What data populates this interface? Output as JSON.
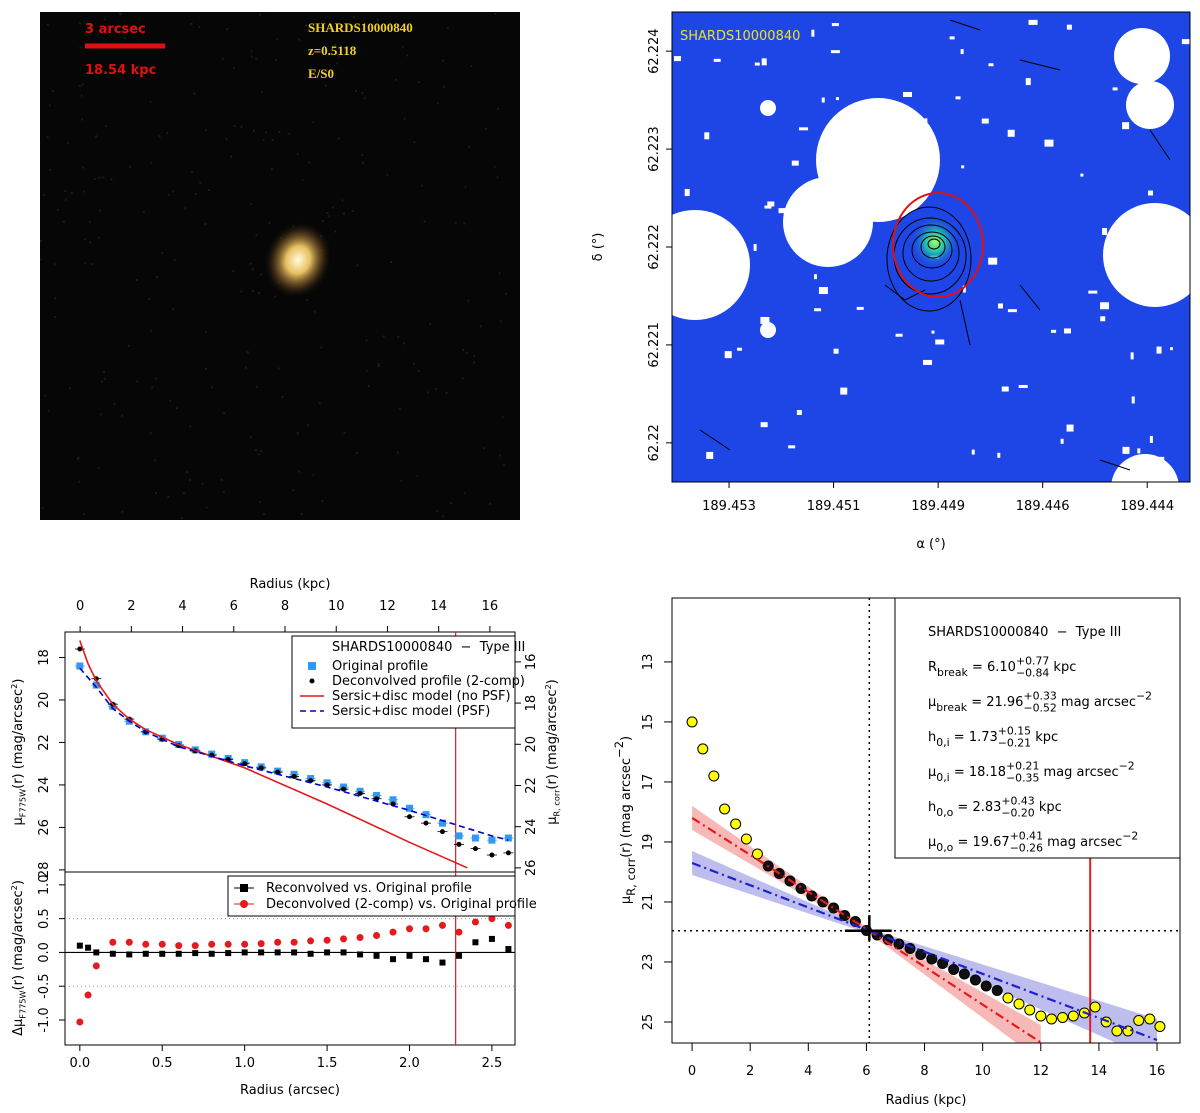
{
  "chart_data": [
    {
      "type": "image",
      "scale_labels": [
        "3 arcsec",
        "18.54 kpc"
      ],
      "text": [
        "SHARDS10000840",
        "z=0.5118",
        "E/S0"
      ]
    },
    {
      "type": "map",
      "title": "SHARDS10000840",
      "xlabel": "α (°)",
      "ylabel": "δ (°)",
      "xlim": [
        189.4542,
        189.4433
      ],
      "ylim": [
        62.2196,
        62.2244
      ],
      "xticks": [
        189.453,
        {
          "value": 189.4508,
          "label": "189.451"
        },
        {
          "value": 189.4486,
          "label": "189.449"
        },
        {
          "value": 189.4464,
          "label": "189.446"
        },
        {
          "value": 189.4442,
          "label": "189.444"
        }
      ],
      "yticks": [
        62.224,
        62.223,
        62.222,
        62.221,
        62.22
      ]
    },
    {
      "type": "profile",
      "x2label": "Radius (kpc)",
      "ylabel": [
        {
          "t": "μ"
        },
        {
          "sub": "F775W"
        },
        {
          "t": "(r) (mag/arcsec"
        },
        {
          "sup": "2"
        },
        {
          "t": ")"
        }
      ],
      "y2label": [
        {
          "t": "μ"
        },
        {
          "sub": "R, corr"
        },
        {
          "t": "(r) (mag/arcsec"
        },
        {
          "sup": "2"
        },
        {
          "t": ")"
        }
      ],
      "xlim": [
        -0.09,
        2.64
      ],
      "x2lim": [
        -0.59,
        16.98
      ],
      "x2ticks": [
        0,
        2,
        4,
        6,
        8,
        10,
        12,
        14,
        16
      ],
      "ylim": [
        28.1,
        16.8
      ],
      "yticks": [
        18,
        20,
        22,
        24,
        26,
        28
      ],
      "y2lim": [
        26.2,
        14.55
      ],
      "y2ticks": [
        16,
        18,
        20,
        22,
        24,
        26
      ],
      "legend_title": "SHARDS10000840  −  Type III",
      "legend": "top-right",
      "limit_x": 2.28,
      "series": [
        {
          "name": "Original profile",
          "color": "#3399ee",
          "marker": "square",
          "x": [
            0,
            0.1,
            0.2,
            0.3,
            0.4,
            0.5,
            0.6,
            0.7,
            0.8,
            0.9,
            1.0,
            1.1,
            1.2,
            1.3,
            1.4,
            1.5,
            1.6,
            1.7,
            1.8,
            1.9,
            2.0,
            2.1,
            2.2,
            2.3,
            2.4,
            2.5,
            2.6
          ],
          "values": [
            18.4,
            19.3,
            20.3,
            21.0,
            21.5,
            21.8,
            22.1,
            22.35,
            22.55,
            22.75,
            22.95,
            23.15,
            23.35,
            23.5,
            23.7,
            23.9,
            24.1,
            24.3,
            24.5,
            24.7,
            25.1,
            25.4,
            25.8,
            26.4,
            26.5,
            26.6,
            26.5
          ]
        },
        {
          "name": "Deconvolved profile (2-comp)",
          "color": "#000000",
          "marker": "dot",
          "x": [
            0,
            0.1,
            0.2,
            0.3,
            0.4,
            0.5,
            0.6,
            0.7,
            0.8,
            0.9,
            1.0,
            1.1,
            1.2,
            1.3,
            1.4,
            1.5,
            1.6,
            1.7,
            1.8,
            1.9,
            2.0,
            2.1,
            2.2,
            2.3,
            2.4,
            2.5,
            2.6
          ],
          "values": [
            17.6,
            19.0,
            20.2,
            20.9,
            21.5,
            21.85,
            22.15,
            22.4,
            22.6,
            22.8,
            23.0,
            23.2,
            23.4,
            23.6,
            23.8,
            24.0,
            24.2,
            24.4,
            24.65,
            24.9,
            25.5,
            25.8,
            26.2,
            26.8,
            27.0,
            27.3,
            27.2
          ]
        },
        {
          "name": "Sersic+disc model (no PSF)",
          "color": "#e41a1c",
          "line": "solid",
          "x": [
            0,
            0.05,
            0.1,
            0.2,
            0.3,
            0.4,
            0.6,
            1.0,
            1.5,
            2.0,
            2.35
          ],
          "values": [
            17.2,
            18.3,
            19.1,
            20.2,
            20.9,
            21.4,
            22.1,
            23.2,
            24.9,
            26.7,
            27.9
          ]
        },
        {
          "name": "Sersic+disc model (PSF)",
          "color": "#0000cc",
          "line": "dashed",
          "x": [
            0,
            0.1,
            0.2,
            0.3,
            0.4,
            0.6,
            1.0,
            1.5,
            2.0,
            2.5,
            2.6
          ],
          "values": [
            18.5,
            19.4,
            20.4,
            21.0,
            21.5,
            22.2,
            23.1,
            24.1,
            25.2,
            26.4,
            26.6
          ]
        }
      ]
    },
    {
      "type": "residual",
      "xlabel": "Radius (arcsec)",
      "ylabel": [
        {
          "t": "Δμ"
        },
        {
          "sub": "F775W"
        },
        {
          "t": "(r) (mag/arcsec"
        },
        {
          "sup": "2"
        },
        {
          "t": ")"
        }
      ],
      "xlim": [
        -0.09,
        2.64
      ],
      "xticks": [
        {
          "value": 0,
          "label": "0.0"
        },
        0.5,
        {
          "value": 1,
          "label": "1.0"
        },
        1.5,
        {
          "value": 2,
          "label": "2.0"
        },
        2.5
      ],
      "ylim": [
        -1.37,
        1.19
      ],
      "yticks": [
        {
          "value": 1,
          "label": "1.0"
        },
        0.5,
        {
          "value": 0,
          "label": "0.0"
        },
        -0.5,
        {
          "value": -1,
          "label": "-1.0"
        }
      ],
      "guides": [
        0.5,
        -0.5
      ],
      "limit_x": 2.28,
      "legend": "top-right",
      "series": [
        {
          "name": "Reconvolved vs. Original profile",
          "color": "#000000",
          "marker": "square",
          "x": [
            0,
            0.05,
            0.1,
            0.2,
            0.3,
            0.4,
            0.5,
            0.6,
            0.7,
            0.8,
            0.9,
            1.0,
            1.1,
            1.2,
            1.3,
            1.4,
            1.5,
            1.6,
            1.7,
            1.8,
            1.9,
            2.0,
            2.1,
            2.2,
            2.3,
            2.4,
            2.5,
            2.6
          ],
          "values": [
            0.1,
            0.07,
            0.0,
            -0.02,
            -0.03,
            -0.02,
            -0.02,
            -0.02,
            -0.01,
            -0.02,
            -0.01,
            0,
            0,
            0,
            0,
            -0.02,
            0,
            0,
            -0.03,
            -0.05,
            -0.1,
            -0.05,
            -0.1,
            -0.15,
            -0.05,
            0.15,
            0.2,
            0.05
          ]
        },
        {
          "name": "Deconvolved (2-comp) vs. Original profile",
          "color": "#e41a1c",
          "marker": "dot",
          "x": [
            0,
            0.05,
            0.1,
            0.2,
            0.3,
            0.4,
            0.5,
            0.6,
            0.7,
            0.8,
            0.9,
            1.0,
            1.1,
            1.2,
            1.3,
            1.4,
            1.5,
            1.6,
            1.7,
            1.8,
            1.9,
            2.0,
            2.1,
            2.2,
            2.3,
            2.4,
            2.5,
            2.6
          ],
          "values": [
            -1.03,
            -0.63,
            -0.2,
            0.15,
            0.15,
            0.12,
            0.12,
            0.1,
            0.1,
            0.12,
            0.12,
            0.12,
            0.13,
            0.15,
            0.15,
            0.17,
            0.18,
            0.2,
            0.22,
            0.25,
            0.3,
            0.35,
            0.35,
            0.4,
            0.3,
            0.45,
            0.5,
            0.4
          ]
        }
      ]
    },
    {
      "type": "fit",
      "xlabel": "Radius (kpc)",
      "ylabel": [
        {
          "t": "μ"
        },
        {
          "sub": "R, corr"
        },
        {
          "t": "(r) (mag arcsec"
        },
        {
          "sup": "−2"
        },
        {
          "t": ")"
        }
      ],
      "xlim": [
        -0.69,
        16.79
      ],
      "xticks": [
        0,
        2,
        4,
        6,
        8,
        10,
        12,
        14,
        16
      ],
      "ylim": [
        25.7,
        10.87
      ],
      "yticks": [
        13,
        15,
        17,
        19,
        21,
        23,
        25
      ],
      "series": [
        {
          "color": "#ffff00",
          "x": [
            0,
            0.37,
            0.75,
            1.12,
            1.5,
            1.87,
            2.25
          ],
          "values": [
            15.0,
            15.9,
            16.8,
            17.9,
            18.4,
            18.9,
            19.4
          ]
        },
        {
          "color": "#111111",
          "x": [
            2.62,
            3.0,
            3.37,
            3.75,
            4.12,
            4.5,
            4.87,
            5.25,
            5.62,
            6.0,
            6.37,
            6.75,
            7.12,
            7.5,
            7.87,
            8.25,
            8.62,
            9.0,
            9.37,
            9.75,
            10.12,
            10.5
          ],
          "values": [
            19.8,
            20.05,
            20.3,
            20.55,
            20.8,
            21.0,
            21.2,
            21.45,
            21.65,
            21.95,
            22.1,
            22.25,
            22.4,
            22.55,
            22.75,
            22.9,
            23.05,
            23.25,
            23.4,
            23.6,
            23.8,
            23.95
          ]
        },
        {
          "color": "#ffff00",
          "x": [
            10.87,
            11.25,
            11.62,
            12.0,
            12.37,
            12.75,
            13.12,
            13.5,
            13.87,
            14.25,
            14.62,
            15.0,
            15.37,
            15.75,
            16.1
          ],
          "values": [
            24.2,
            24.4,
            24.6,
            24.8,
            24.9,
            24.85,
            24.8,
            24.7,
            24.5,
            25.0,
            25.3,
            25.3,
            24.95,
            24.9,
            25.15
          ]
        }
      ],
      "fits": [
        {
          "color": "#e41a1c",
          "band_color": "#f4a0a0",
          "x": [
            0,
            6.1,
            12
          ],
          "values": [
            18.2,
            21.96,
            25.68
          ],
          "band_low": [
            17.8,
            21.9,
            25.1
          ],
          "band_high": [
            18.6,
            22.05,
            26.3
          ]
        },
        {
          "color": "#2020cc",
          "band_color": "#a8a8e8",
          "x": [
            0,
            6.1,
            16
          ],
          "values": [
            19.7,
            21.96,
            25.6
          ],
          "band_low": [
            19.3,
            21.9,
            24.9
          ],
          "band_high": [
            20.1,
            22.05,
            26.3
          ]
        }
      ],
      "break": {
        "x": 6.1,
        "y": 21.96,
        "xerr": [
          0.84,
          0.77
        ],
        "yerr": [
          0.52,
          0.33
        ]
      },
      "limit_x": 13.7,
      "legend": "top-right",
      "annotations": [
        [
          {
            "t": "SHARDS10000840  −  Type III"
          }
        ],
        [
          {
            "t": "R"
          },
          {
            "sub": "break"
          },
          {
            "t": " = 6.10"
          },
          {
            "pair": [
              "+0.77",
              "−0.84"
            ]
          },
          {
            "t": " kpc"
          }
        ],
        [
          {
            "t": "μ"
          },
          {
            "sub": "break"
          },
          {
            "t": " = 21.96"
          },
          {
            "pair": [
              "+0.33",
              "−0.52"
            ]
          },
          {
            "t": " mag arcsec"
          },
          {
            "sup": "−2"
          }
        ],
        [
          {
            "t": "h"
          },
          {
            "sub": "0,i"
          },
          {
            "t": " = 1.73"
          },
          {
            "pair": [
              "+0.15",
              "−0.21"
            ]
          },
          {
            "t": " kpc"
          }
        ],
        [
          {
            "t": "μ"
          },
          {
            "sub": "0,i"
          },
          {
            "t": " = 18.18"
          },
          {
            "pair": [
              "+0.21",
              "−0.35"
            ]
          },
          {
            "t": " mag arcsec"
          },
          {
            "sup": "−2"
          }
        ],
        [
          {
            "t": "h"
          },
          {
            "sub": "0,o"
          },
          {
            "t": " = 2.83"
          },
          {
            "pair": [
              "+0.43",
              "−0.20"
            ]
          },
          {
            "t": " kpc"
          }
        ],
        [
          {
            "t": "μ"
          },
          {
            "sub": "0,o"
          },
          {
            "t": " = 19.67"
          },
          {
            "pair": [
              "+0.41",
              "−0.26"
            ]
          },
          {
            "t": " mag arcsec"
          },
          {
            "sup": "−2"
          }
        ]
      ]
    }
  ]
}
